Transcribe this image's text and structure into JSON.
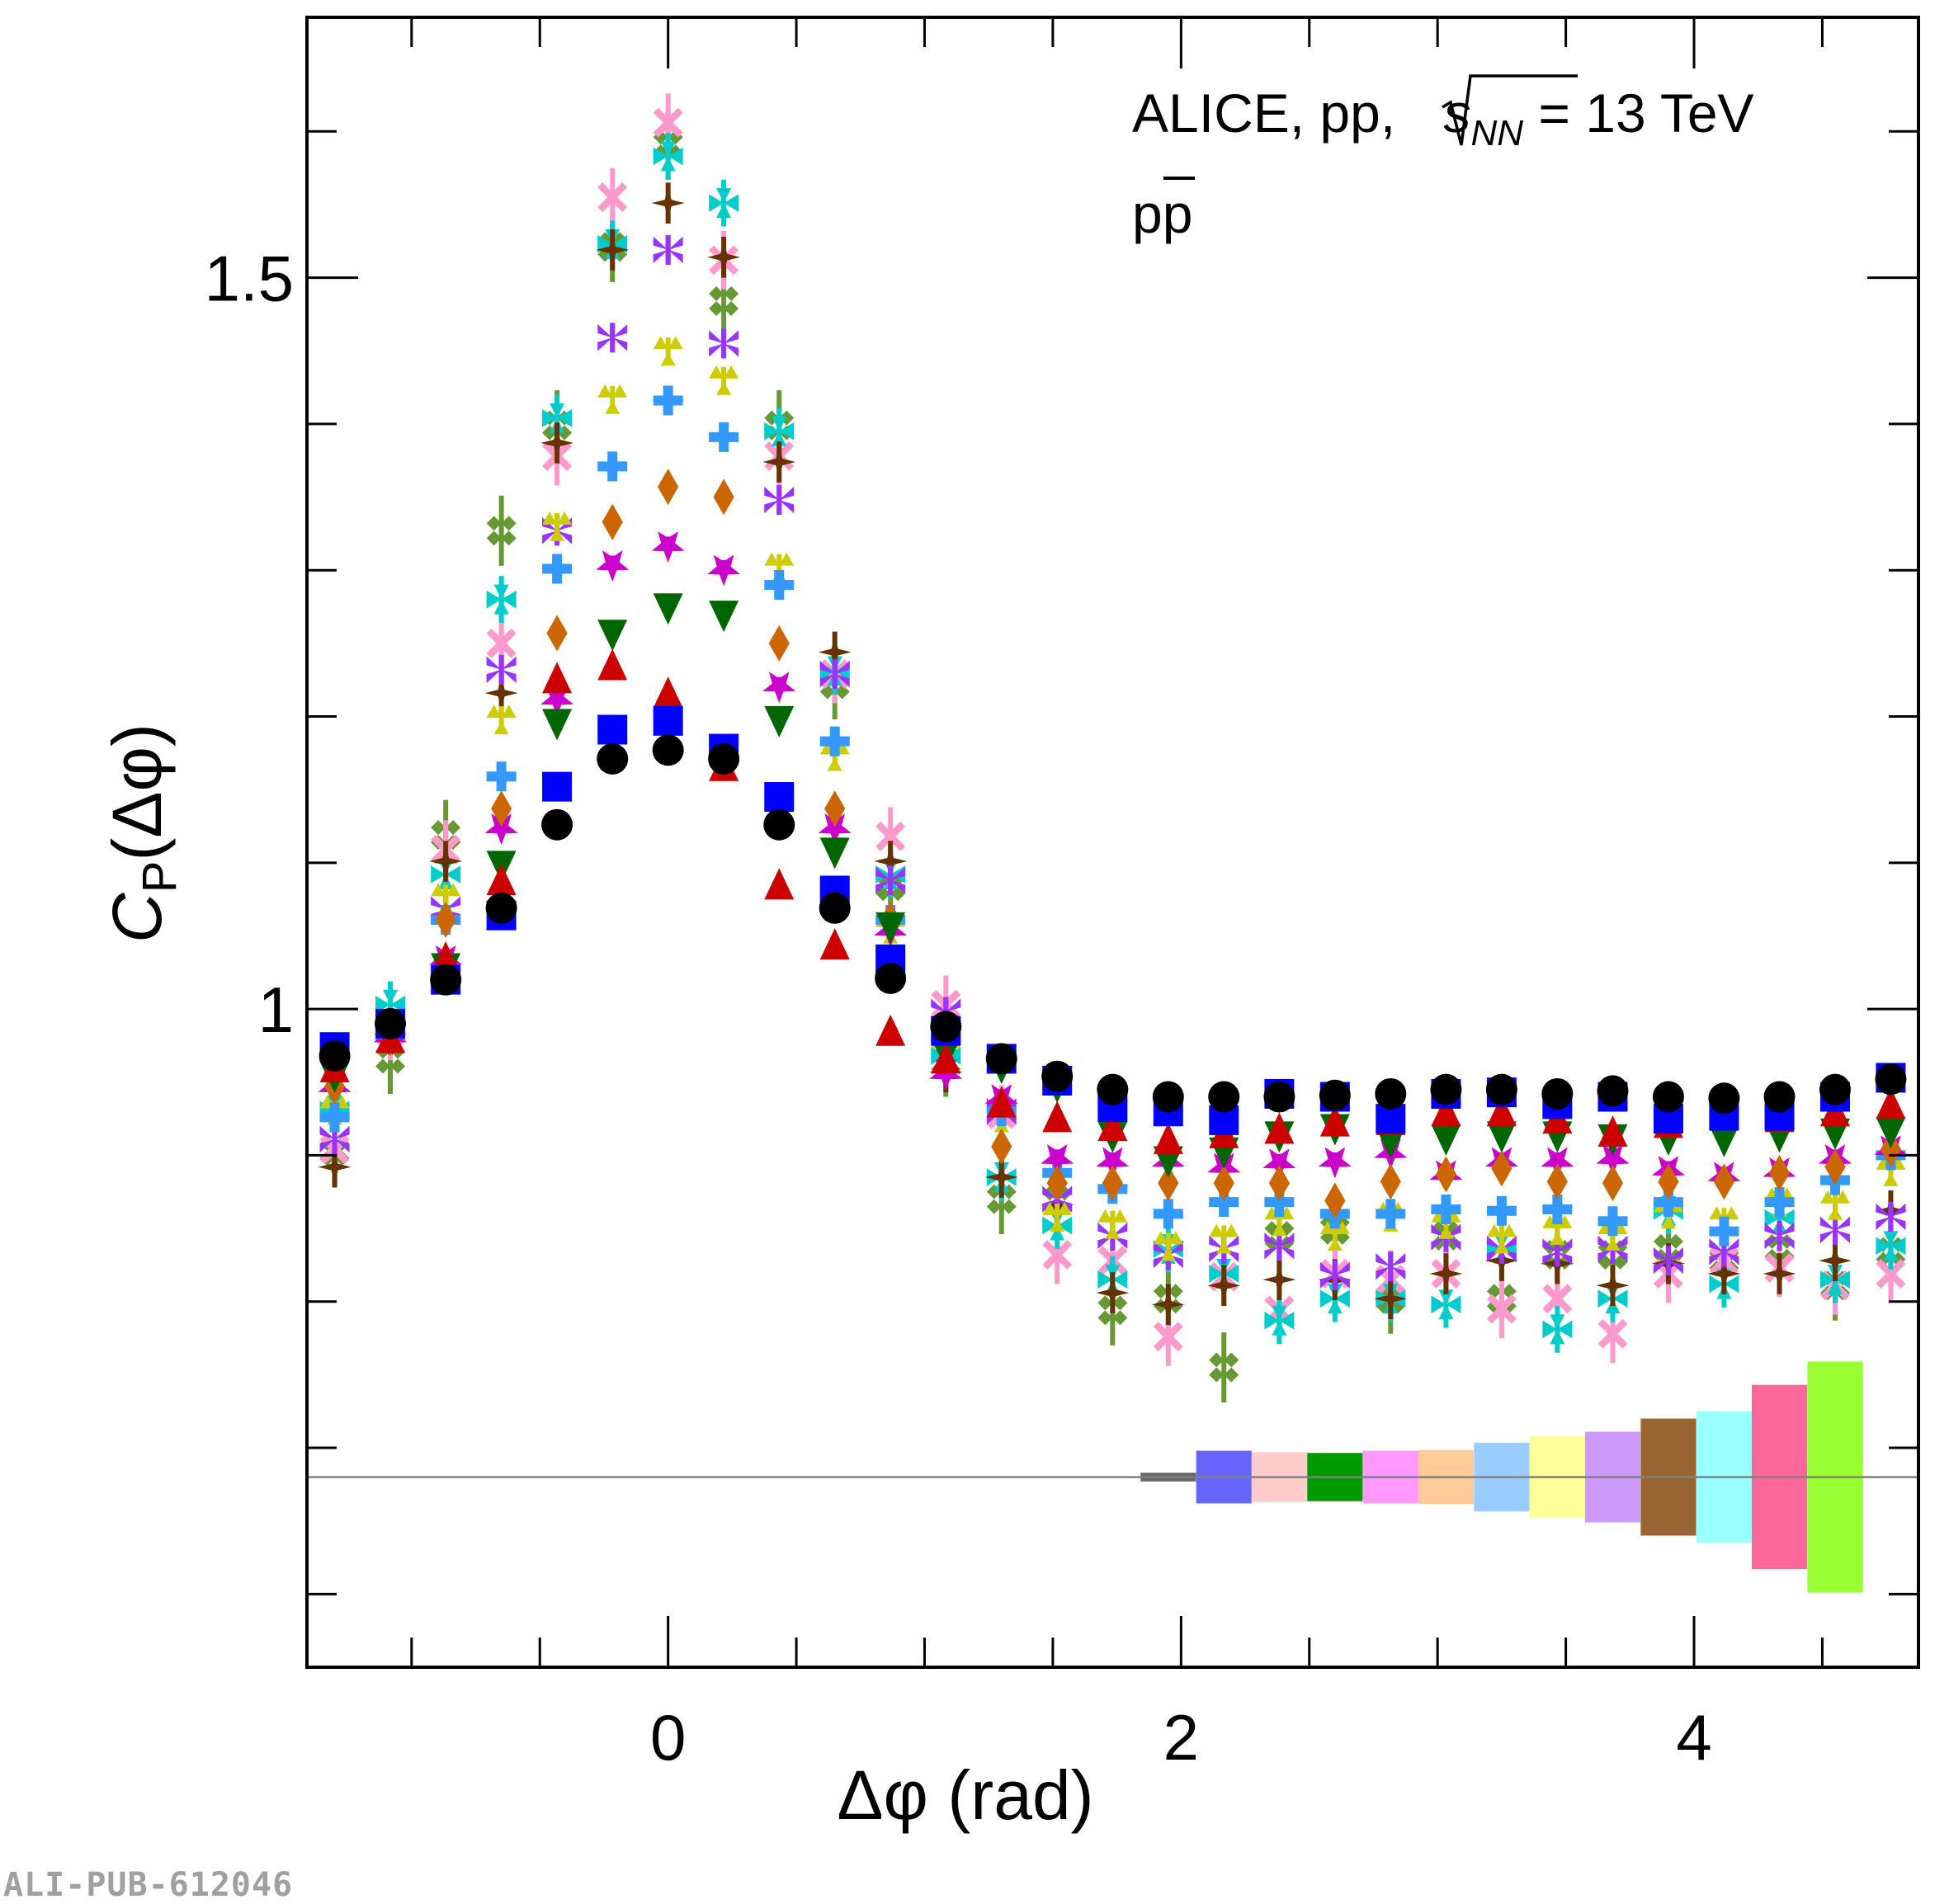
{
  "chart_data": {
    "type": "scatter",
    "title": "",
    "xlabel": "Δφ (rad)",
    "ylabel_main": "C",
    "ylabel_sub": "P",
    "ylabel_rest": "(Δφ)",
    "xlim": [
      -1.408,
      4.875
    ],
    "ylim": [
      0.55,
      1.678
    ],
    "x_major_ticks": [
      0,
      2,
      4
    ],
    "x_tick_labels": [
      "0",
      "2",
      "4"
    ],
    "x_minor_step": 0.5,
    "y_major_ticks": [
      1.0,
      1.5
    ],
    "y_tick_labels": [
      "1",
      "1.5"
    ],
    "y_minor_step": 0.1,
    "grid": false,
    "annotations": {
      "line1_prefix": "ALICE, pp, ",
      "line1_energy_var": "s",
      "line1_energy_sub": "NN",
      "line1_suffix": " = 13 TeV",
      "line2_particle": "p",
      "line2_antiparticle": "p"
    },
    "x": [
      -1.3,
      -1.083,
      -0.867,
      -0.65,
      -0.433,
      -0.217,
      0.0,
      0.217,
      0.433,
      0.65,
      0.867,
      1.083,
      1.3,
      1.517,
      1.733,
      1.95,
      2.167,
      2.383,
      2.6,
      2.817,
      3.033,
      3.25,
      3.467,
      3.683,
      3.9,
      4.117,
      4.333,
      4.55,
      4.767
    ],
    "series": [
      {
        "name": "series-1",
        "marker": "circle",
        "color": "#000000",
        "err": 0.002,
        "values": [
          0.968,
          0.99,
          1.02,
          1.069,
          1.126,
          1.171,
          1.177,
          1.171,
          1.126,
          1.069,
          1.021,
          0.988,
          0.966,
          0.954,
          0.945,
          0.94,
          0.94,
          0.94,
          0.941,
          0.942,
          0.945,
          0.945,
          0.942,
          0.944,
          0.94,
          0.939,
          0.94,
          0.945,
          0.952
        ]
      },
      {
        "name": "series-2",
        "marker": "square",
        "color": "#0000FF",
        "err": 0.003,
        "values": [
          0.974,
          0.99,
          1.02,
          1.064,
          1.152,
          1.191,
          1.197,
          1.178,
          1.145,
          1.081,
          1.034,
          0.985,
          0.966,
          0.951,
          0.933,
          0.93,
          0.924,
          0.942,
          0.94,
          0.925,
          0.942,
          0.943,
          0.935,
          0.94,
          0.925,
          0.927,
          0.927,
          0.94,
          0.953
        ]
      },
      {
        "name": "series-3",
        "marker": "triangle-up",
        "color": "#CC0000",
        "err": 0.004,
        "values": [
          0.96,
          0.98,
          1.035,
          1.088,
          1.226,
          1.235,
          1.216,
          1.166,
          1.085,
          1.044,
          0.985,
          0.966,
          0.936,
          0.926,
          0.92,
          0.911,
          0.915,
          0.918,
          0.923,
          0.924,
          0.93,
          0.93,
          0.925,
          0.916,
          0.922,
          0.927,
          0.926,
          0.93,
          0.935
        ]
      },
      {
        "name": "series-4",
        "marker": "triangle-down",
        "color": "#006600",
        "err": 0.005,
        "values": [
          0.954,
          0.981,
          1.028,
          1.098,
          1.195,
          1.256,
          1.274,
          1.269,
          1.197,
          1.107,
          1.056,
          0.97,
          0.96,
          0.947,
          0.913,
          0.896,
          0.902,
          0.913,
          0.918,
          0.909,
          0.911,
          0.913,
          0.913,
          0.911,
          0.911,
          0.91,
          0.913,
          0.915,
          0.916
        ]
      },
      {
        "name": "series-5",
        "marker": "diamond",
        "color": "#CC6600",
        "err": 0.006,
        "values": [
          0.947,
          0.98,
          1.061,
          1.137,
          1.257,
          1.333,
          1.357,
          1.35,
          1.25,
          1.137,
          1.061,
          0.977,
          0.906,
          0.881,
          0.881,
          0.881,
          0.881,
          0.881,
          0.869,
          0.882,
          0.887,
          0.891,
          0.882,
          0.881,
          0.882,
          0.882,
          0.888,
          0.892,
          0.904
        ]
      },
      {
        "name": "series-6",
        "marker": "star",
        "color": "#CC00CC",
        "err": 0.006,
        "values": [
          0.947,
          0.981,
          1.034,
          1.124,
          1.212,
          1.304,
          1.317,
          1.301,
          1.221,
          1.124,
          1.054,
          0.956,
          0.939,
          0.898,
          0.896,
          0.896,
          0.892,
          0.895,
          0.896,
          0.902,
          0.887,
          0.896,
          0.896,
          0.898,
          0.89,
          0.886,
          0.889,
          0.898,
          0.904
        ]
      },
      {
        "name": "series-7",
        "marker": "cross",
        "color": "#3399FF",
        "err": 0.008,
        "values": [
          0.926,
          0.981,
          1.061,
          1.159,
          1.301,
          1.371,
          1.416,
          1.391,
          1.29,
          1.183,
          1.061,
          0.981,
          0.93,
          0.888,
          0.877,
          0.86,
          0.868,
          0.868,
          0.86,
          0.86,
          0.863,
          0.862,
          0.863,
          0.855,
          0.868,
          0.848,
          0.868,
          0.883,
          0.9
        ]
      },
      {
        "name": "series-8",
        "marker": "trefoil",
        "color": "#CCCC00",
        "err": 0.009,
        "values": [
          0.931,
          0.985,
          1.076,
          1.198,
          1.33,
          1.417,
          1.45,
          1.43,
          1.302,
          1.173,
          1.055,
          0.972,
          0.926,
          0.858,
          0.853,
          0.838,
          0.843,
          0.855,
          0.845,
          0.858,
          0.853,
          0.843,
          0.849,
          0.845,
          0.86,
          0.855,
          0.868,
          0.866,
          0.889
        ]
      },
      {
        "name": "series-9",
        "marker": "asterisk",
        "color": "#9933FF",
        "err": 0.01,
        "values": [
          0.911,
          0.99,
          1.068,
          1.232,
          1.327,
          1.459,
          1.519,
          1.455,
          1.348,
          1.229,
          1.088,
          0.998,
          0.93,
          0.87,
          0.845,
          0.832,
          0.836,
          0.838,
          0.818,
          0.824,
          0.844,
          0.836,
          0.834,
          0.836,
          0.828,
          0.834,
          0.845,
          0.849,
          0.858
        ]
      },
      {
        "name": "series-10",
        "marker": "four-star",
        "color": "#663300",
        "err": 0.014,
        "values": [
          0.892,
          0.983,
          1.101,
          1.216,
          1.387,
          1.519,
          1.551,
          1.514,
          1.374,
          1.244,
          1.101,
          0.957,
          0.885,
          0.866,
          0.806,
          0.798,
          0.811,
          0.815,
          0.815,
          0.802,
          0.819,
          0.828,
          0.826,
          0.811,
          0.826,
          0.819,
          0.819,
          0.828,
          0.862
        ]
      },
      {
        "name": "series-11",
        "marker": "arrow-asterisk",
        "color": "#00CCCC",
        "err": 0.016,
        "values": [
          0.931,
          1.003,
          1.092,
          1.28,
          1.404,
          1.523,
          1.583,
          1.551,
          1.395,
          1.231,
          1.092,
          0.968,
          0.885,
          0.852,
          0.815,
          0.836,
          0.819,
          0.787,
          0.802,
          0.802,
          0.798,
          0.836,
          0.781,
          0.802,
          0.862,
          0.812,
          0.857,
          0.815,
          0.838
        ]
      },
      {
        "name": "series-12",
        "marker": "x-cross",
        "color": "#FF99CC",
        "err": 0.02,
        "values": [
          0.904,
          0.985,
          1.109,
          1.25,
          1.378,
          1.555,
          1.606,
          1.512,
          1.378,
          1.229,
          1.118,
          1.003,
          0.928,
          0.832,
          0.828,
          0.776,
          0.817,
          0.794,
          0.819,
          0.815,
          0.819,
          0.795,
          0.802,
          0.778,
          0.819,
          0.828,
          0.823,
          0.811,
          0.819
        ]
      },
      {
        "name": "series-13",
        "marker": "double-diamond",
        "color": "#669933",
        "err": 0.024,
        "values": [
          0.903,
          0.966,
          1.119,
          1.327,
          1.399,
          1.521,
          1.591,
          1.484,
          1.399,
          1.222,
          1.084,
          0.964,
          0.87,
          0.869,
          0.794,
          0.802,
          0.755,
          0.845,
          0.849,
          0.802,
          0.845,
          0.802,
          0.832,
          0.832,
          0.836,
          0.828,
          0.836,
          0.811,
          0.834
        ]
      }
    ],
    "systematics": {
      "reference_y": 0.68,
      "reference_line_color": "#808080",
      "box_x": [
        1.95,
        2.167,
        2.383,
        2.6,
        2.817,
        3.033,
        3.25,
        3.467,
        3.683,
        3.9,
        4.117,
        4.333,
        4.55
      ],
      "box_halfwidth": 0.108,
      "box_halfheight": [
        0.003,
        0.018,
        0.017,
        0.0165,
        0.018,
        0.0185,
        0.0235,
        0.028,
        0.031,
        0.04,
        0.045,
        0.063,
        0.079
      ],
      "box_colors": [
        "#666666",
        "#6666FF",
        "#FFCCCC",
        "#009900",
        "#FF99FF",
        "#FFCC99",
        "#99CCFF",
        "#FFFF99",
        "#CC99FF",
        "#996633",
        "#99FFFF",
        "#FF6699",
        "#99FF33"
      ]
    }
  },
  "watermark": "ALI-PUB-612046"
}
